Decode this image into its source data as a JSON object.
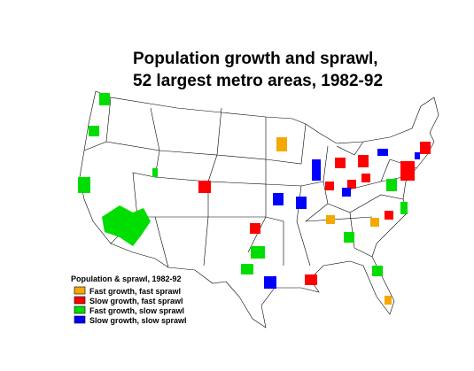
{
  "title_lines": [
    "Population growth and sprawl,",
    "52 largest metro areas, 1982-92"
  ],
  "legend": {
    "title": "Population & sprawl, 1982-92",
    "items": [
      {
        "label": "Fast growth, fast sprawl",
        "color": "#f5a800"
      },
      {
        "label": "Slow growth, fast sprawl",
        "color": "#ff0000"
      },
      {
        "label": "Fast growth, slow sprawl",
        "color": "#00dd00"
      },
      {
        "label": "Slow growth, slow sprawl",
        "color": "#0000ff"
      }
    ]
  }
}
